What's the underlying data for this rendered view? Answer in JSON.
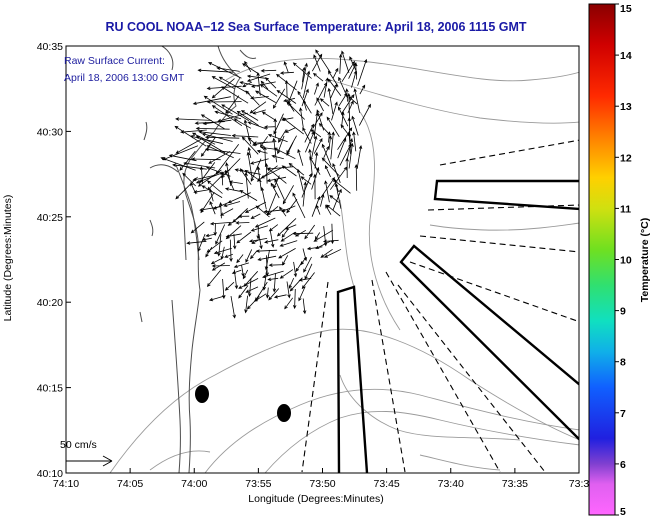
{
  "chart_data": {
    "type": "map",
    "title": "RU COOL  NOAA−12  Sea Surface Temperature:  April 18, 2006 1115 GMT",
    "xlabel": "Longitude (Degrees:Minutes)",
    "ylabel": "Latitude (Degrees:Minutes)",
    "x_ticks": [
      "74:10",
      "74:05",
      "74:00",
      "73:55",
      "73:50",
      "73:45",
      "73:40",
      "73:35",
      "73:3"
    ],
    "y_ticks": [
      "40:35",
      "40:30",
      "40:25",
      "40:20",
      "40:15",
      "40:10"
    ],
    "xlim_minutes_west": [
      10,
      30
    ],
    "ylim_minutes_north": [
      10,
      35
    ],
    "annotation_lines": [
      "Raw Surface Current:",
      "April 18, 2006 13:00 GMT"
    ],
    "scale_label": "50 cm/s",
    "colorbar": {
      "label": "Temperature (°C)",
      "ticks": [
        "15",
        "14",
        "13",
        "12",
        "11",
        "10",
        "9",
        "8",
        "7",
        "6",
        "5"
      ],
      "min": 5,
      "max": 15
    },
    "markers": [
      {
        "lon_min_w": 59.0,
        "lat_min_n": 14.7
      },
      {
        "lon_min_w": 52.2,
        "lat_min_n": 13.5
      }
    ],
    "grid": false
  },
  "colors": {
    "title": "#1a1aa6",
    "annotation": "#2020a0",
    "contour": "#9a9a9a",
    "vector": "#000000"
  }
}
